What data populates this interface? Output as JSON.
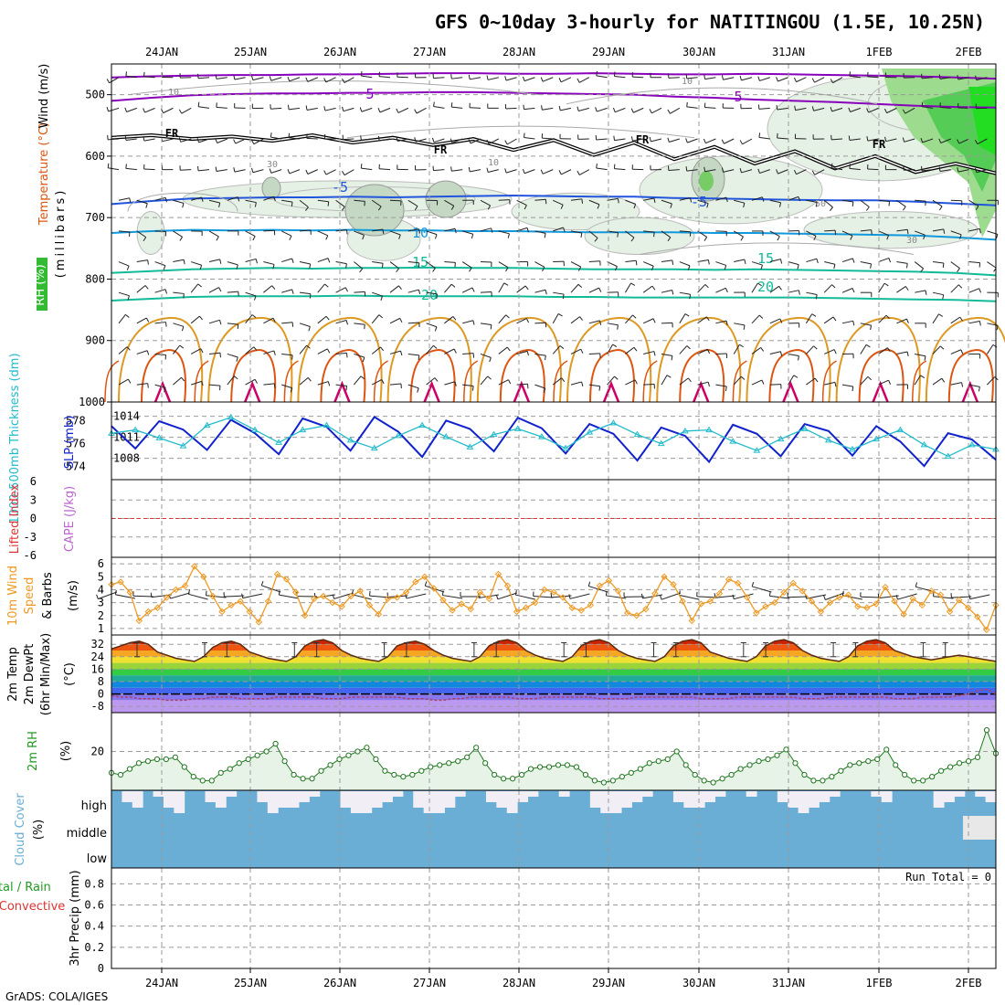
{
  "title": "GFS 0~10day 3-hourly for NATITINGOU (1.5E, 10.25N)",
  "credit": "GrADS: COLA/IGES",
  "run_total": "Run Total = 0",
  "colors": {
    "temp_cold": "#8800bb",
    "temp_cool": "#2255dd",
    "temp_mild": "#1199dd",
    "temp_warm1": "#11bb99",
    "temp_warm2": "#dd9922",
    "temp_hot": "#dd5511",
    "temp_hottest": "#cc0066",
    "slp": "#1122cc",
    "thickness": "#22bbcc",
    "wind10": "#ee9922",
    "rh2m": "#229922",
    "cloud": "#6aaed6",
    "lifted": "#dd3333"
  },
  "chart_data": [
    {
      "type": "line",
      "panel": "upper-air",
      "title": "",
      "dates": [
        "24JAN",
        "25JAN",
        "26JAN",
        "27JAN",
        "28JAN",
        "29JAN",
        "30JAN",
        "31JAN",
        "1FEB",
        "2FEB"
      ],
      "ylabel_parts": [
        "RH (%)",
        "Temperature (°C)",
        "Wind (m/s)"
      ],
      "ylabel_right": "(millibars)",
      "yticks": [
        500,
        600,
        700,
        800,
        900,
        1000
      ],
      "ylim": [
        1000,
        450
      ],
      "y_scale": "inverted",
      "contour_labels": [
        "10",
        "5",
        "5",
        "FR",
        "FR",
        "FR",
        "FR",
        "30",
        "10",
        "-5",
        "-5",
        "50",
        "30",
        "10",
        "10",
        "15",
        "15",
        "20",
        "20"
      ],
      "isotherms": [
        {
          "name": "-10",
          "values": [
            472,
            470,
            469,
            468,
            468,
            467,
            467,
            466,
            465,
            465,
            466,
            466,
            465,
            466,
            467,
            467,
            466,
            467,
            468,
            469,
            470,
            472,
            474
          ]
        },
        {
          "name": "-5",
          "values": [
            510,
            505,
            501,
            499,
            498,
            498,
            497,
            497,
            496,
            496,
            497,
            498,
            499,
            500,
            503,
            505,
            508,
            510,
            512,
            515,
            518,
            520,
            521
          ]
        },
        {
          "name": "FR",
          "values": [
            570,
            566,
            572,
            568,
            575,
            566,
            578,
            570,
            582,
            572,
            590,
            574,
            598,
            578,
            605,
            585,
            612,
            592,
            620,
            600,
            626,
            612,
            628
          ]
        },
        {
          "name": "5",
          "values": [
            678,
            673,
            669,
            668,
            667,
            667,
            666,
            667,
            666,
            665,
            664,
            665,
            666,
            666,
            668,
            669,
            670,
            671,
            672,
            672,
            674,
            677,
            680
          ]
        },
        {
          "name": "10",
          "values": [
            725,
            722,
            720,
            721,
            720,
            721,
            720,
            721,
            721,
            722,
            722,
            723,
            724,
            724,
            724,
            725,
            725,
            726,
            727,
            728,
            729,
            732,
            736
          ]
        },
        {
          "name": "15",
          "values": [
            790,
            787,
            784,
            783,
            782,
            783,
            782,
            782,
            781,
            782,
            782,
            783,
            784,
            784,
            784,
            785,
            784,
            785,
            786,
            787,
            788,
            790,
            794
          ]
        },
        {
          "name": "20",
          "values": [
            835,
            832,
            829,
            828,
            828,
            828,
            827,
            828,
            828,
            828,
            828,
            829,
            829,
            830,
            830,
            830,
            830,
            830,
            831,
            832,
            833,
            834,
            836
          ]
        }
      ]
    },
    {
      "type": "line",
      "panel": "slp-thickness",
      "title": "",
      "ylabel_left": "1000-500mb Thickness (dm)",
      "ylabel_right": "SLP (mb)",
      "yticks_left": [
        574,
        576,
        578
      ],
      "yticks_right": [
        1008,
        1011,
        1014
      ],
      "series": [
        {
          "name": "SLP (mb)",
          "axis": "right",
          "values": [
            1012.6,
            1009.4,
            1013.3,
            1012.1,
            1009.2,
            1013.5,
            1011.6,
            1008.6,
            1013.7,
            1012.5,
            1009.1,
            1013.9,
            1011.8,
            1008.2,
            1013.4,
            1012.2,
            1009.0,
            1013.8,
            1012.3,
            1008.7,
            1012.9,
            1011.5,
            1007.7,
            1012.4,
            1011.2,
            1007.5,
            1012.8,
            1011.5,
            1008.3,
            1012.9,
            1011.9,
            1008.4,
            1012.6,
            1010.4,
            1006.9,
            1011.6,
            1010.7,
            1007.8
          ]
        },
        {
          "name": "Thickness (dm)",
          "axis": "left",
          "values": [
            576.9,
            577.2,
            576.5,
            575.8,
            577.6,
            578.3,
            577.2,
            576.1,
            577.2,
            577.6,
            576.3,
            575.6,
            576.7,
            577.6,
            576.6,
            575.7,
            576.8,
            577.3,
            576.6,
            575.6,
            577.0,
            577.8,
            576.8,
            576.0,
            577.1,
            577.2,
            576.2,
            575.4,
            576.4,
            577.3,
            576.3,
            575.5,
            576.4,
            577.2,
            575.9,
            574.9,
            575.9,
            575.5
          ]
        }
      ]
    },
    {
      "type": "line",
      "panel": "lifted-cape",
      "title": "",
      "ylabel_left": "Lifted Index",
      "ylabel_right": "CAPE (J/kg)",
      "yticks": [
        "6",
        "3",
        "0",
        "-3",
        "-6"
      ],
      "series": [
        {
          "name": "Lifted Index",
          "values": [
            0,
            0,
            0,
            0,
            0,
            0,
            0,
            0,
            0,
            0
          ]
        }
      ]
    },
    {
      "type": "line",
      "panel": "wind10m",
      "title": "",
      "ylabel_parts": [
        "10m Wind",
        "Speed",
        "& Barbs",
        "(m/s)"
      ],
      "yticks": [
        1,
        2,
        3,
        4,
        5,
        6
      ],
      "ylim": [
        0.5,
        6.5
      ],
      "series": [
        {
          "name": "10m Wind Speed",
          "values": [
            4.4,
            4.6,
            3.8,
            1.6,
            2.3,
            2.6,
            3.4,
            4.0,
            4.3,
            5.8,
            5.0,
            3.5,
            2.3,
            2.8,
            3.1,
            2.3,
            1.5,
            3.1,
            5.2,
            4.8,
            3.8,
            2.0,
            3.3,
            3.5,
            3.0,
            2.7,
            3.5,
            3.9,
            2.8,
            2.1,
            3.3,
            3.4,
            3.8,
            4.6,
            5.0,
            4.1,
            3.2,
            2.4,
            2.9,
            2.5,
            3.8,
            3.3,
            5.2,
            4.3,
            2.3,
            2.6,
            3.0,
            4.0,
            3.8,
            3.4,
            2.6,
            2.4,
            2.8,
            4.3,
            4.7,
            3.9,
            2.2,
            2.0,
            2.5,
            3.7,
            5.0,
            4.4,
            3.1,
            1.6,
            2.9,
            3.1,
            3.7,
            4.8,
            4.5,
            3.4,
            2.2,
            2.7,
            3.0,
            3.8,
            4.5,
            3.9,
            3.1,
            2.3,
            3.0,
            3.4,
            3.6,
            2.7,
            2.6,
            2.9,
            4.2,
            3.1,
            2.1,
            3.3,
            2.8,
            3.9,
            3.6,
            2.3,
            3.2,
            2.6,
            1.9,
            0.9,
            2.8
          ]
        }
      ]
    },
    {
      "type": "area",
      "panel": "temp2m",
      "title": "",
      "ylabel_parts": [
        "2m Temp",
        "2m DewPt",
        "(6hr Min/Max)",
        "(°C)"
      ],
      "yticks": [
        -8,
        0,
        8,
        16,
        24,
        32
      ],
      "ylim": [
        -12,
        38
      ],
      "color_bands": [
        {
          "from": 32,
          "to": 36,
          "color": "#cc2200"
        },
        {
          "from": 28,
          "to": 32,
          "color": "#ee5511"
        },
        {
          "from": 24,
          "to": 28,
          "color": "#f5a623"
        },
        {
          "from": 20,
          "to": 24,
          "color": "#f0e030"
        },
        {
          "from": 16,
          "to": 20,
          "color": "#9ad43a"
        },
        {
          "from": 12,
          "to": 16,
          "color": "#33cc44"
        },
        {
          "from": 8,
          "to": 12,
          "color": "#22aa99"
        },
        {
          "from": 4,
          "to": 8,
          "color": "#1188dd"
        },
        {
          "from": 0,
          "to": 4,
          "color": "#4466ee"
        },
        {
          "from": -4,
          "to": 0,
          "color": "#8877ee"
        },
        {
          "from": -12,
          "to": -4,
          "color": "#bb99ee"
        }
      ],
      "series": [
        {
          "name": "2m Temp",
          "values": [
            29,
            31,
            33,
            34,
            32,
            27,
            25,
            23,
            22,
            21,
            24,
            30,
            33,
            34,
            32,
            27,
            25,
            23,
            22,
            21,
            24,
            31,
            34,
            35,
            33,
            28,
            25,
            23,
            22,
            21,
            24,
            31,
            33,
            34,
            32,
            28,
            25,
            23,
            22,
            21,
            24,
            31,
            34,
            35,
            33,
            28,
            25,
            23,
            22,
            21,
            24,
            31,
            34,
            35,
            33,
            28,
            25,
            23,
            22,
            21,
            24,
            31,
            34,
            35,
            33,
            27,
            25,
            23,
            22,
            21,
            24,
            31,
            34,
            35,
            33,
            28,
            25,
            23,
            22,
            21,
            24,
            31,
            34,
            35,
            33,
            28,
            26,
            24,
            23,
            22,
            23,
            24,
            25,
            24,
            23,
            22,
            21
          ]
        },
        {
          "name": "2m DewPt",
          "values": [
            -1,
            -2,
            -2,
            -3,
            -3,
            -3,
            -4,
            -4,
            -4,
            -3,
            -3,
            -2,
            -2,
            -2,
            -3,
            -3,
            -3,
            -3,
            -2,
            -2,
            -2,
            -2,
            -2,
            -3,
            -3,
            -3,
            -2,
            -2,
            -2,
            -2,
            -2,
            -2,
            -3,
            -3,
            -3,
            -4,
            -4,
            -3,
            -3,
            -2,
            -2,
            -2,
            -2,
            -2,
            -3,
            -3,
            -3,
            -2,
            -2,
            -2,
            -2,
            -2,
            -2,
            -3,
            -3,
            -3,
            -3,
            -2,
            -2,
            -2,
            -2,
            -2,
            -2,
            -2,
            -3,
            -3,
            -3,
            -3,
            -2,
            -2,
            -2,
            -2,
            -2,
            -2,
            -2,
            -3,
            -3,
            -3,
            -2,
            -2,
            -2,
            -2,
            -2,
            -2,
            -2,
            -3,
            -3,
            -3,
            -2,
            -2,
            -2,
            -2,
            -1,
            0,
            2,
            3,
            0
          ]
        }
      ]
    },
    {
      "type": "line",
      "panel": "rh2m",
      "title": "",
      "ylabel_parts": [
        "2m RH",
        "(%)"
      ],
      "yticks": [
        20
      ],
      "ylim": [
        0,
        40
      ],
      "series": [
        {
          "name": "2m RH",
          "values": [
            9,
            8,
            11,
            14,
            15,
            16,
            16,
            17,
            12,
            7,
            5,
            5,
            9,
            11,
            14,
            16,
            18,
            20,
            24,
            15,
            8,
            6,
            6,
            10,
            13,
            16,
            18,
            20,
            22,
            16,
            10,
            8,
            7,
            8,
            10,
            12,
            13,
            14,
            15,
            17,
            22,
            14,
            8,
            6,
            6,
            8,
            11,
            12,
            12,
            13,
            13,
            12,
            8,
            5,
            4,
            5,
            7,
            9,
            11,
            14,
            15,
            16,
            20,
            13,
            8,
            5,
            4,
            6,
            8,
            11,
            13,
            15,
            16,
            18,
            21,
            14,
            8,
            5,
            5,
            7,
            10,
            13,
            14,
            15,
            16,
            21,
            13,
            8,
            5,
            5,
            7,
            10,
            12,
            14,
            15,
            17,
            31,
            19
          ]
        }
      ]
    },
    {
      "type": "bar",
      "panel": "cloud-cover",
      "title": "",
      "ylabel_parts": [
        "Cloud Cover",
        "(%)"
      ],
      "levels": [
        "high",
        "middle",
        "low"
      ]
    },
    {
      "type": "bar",
      "panel": "precip",
      "title": "",
      "ylabel_parts": [
        "Total / Rain",
        "Convective",
        "3hr Precip (mm)"
      ],
      "yticks": [
        "0",
        "0.2",
        "0.4",
        "0.6",
        "0.8"
      ],
      "ylim": [
        0,
        0.95
      ],
      "series": [
        {
          "name": "Total / Rain",
          "values": [
            0,
            0,
            0,
            0,
            0,
            0,
            0,
            0,
            0,
            0
          ]
        },
        {
          "name": "Convective",
          "values": [
            0,
            0,
            0,
            0,
            0,
            0,
            0,
            0,
            0,
            0
          ]
        }
      ]
    }
  ]
}
